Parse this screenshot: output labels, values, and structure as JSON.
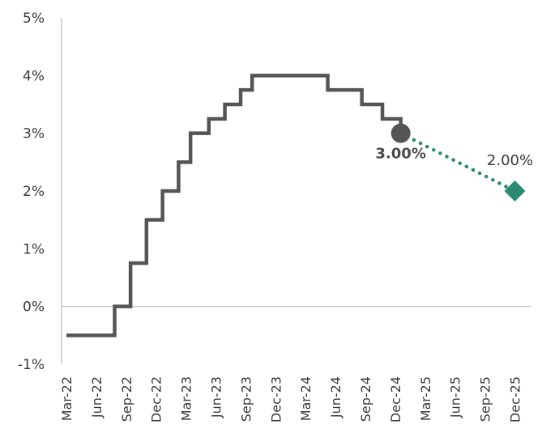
{
  "chart_data": {
    "type": "line",
    "title": "",
    "xlabel": "",
    "ylabel": "",
    "ylim": [
      -1,
      5
    ],
    "y_ticks": [
      "-1%",
      "0%",
      "1%",
      "2%",
      "3%",
      "4%",
      "5%"
    ],
    "categories": [
      "Mar-22",
      "Jun-22",
      "Sep-22",
      "Dec-22",
      "Mar-23",
      "Jun-23",
      "Sep-23",
      "Dec-23",
      "Mar-24",
      "Jun-24",
      "Sep-24",
      "Dec-24",
      "Mar-25",
      "Jun-25",
      "Sep-25",
      "Dec-25"
    ],
    "grid": false,
    "series": [
      {
        "style": "step",
        "color": "#555555",
        "points": [
          {
            "date": "2022-03-01",
            "rate": -0.5
          },
          {
            "date": "2022-07-27",
            "rate": 0.0
          },
          {
            "date": "2022-09-14",
            "rate": 0.75
          },
          {
            "date": "2022-11-02",
            "rate": 1.5
          },
          {
            "date": "2022-12-21",
            "rate": 2.0
          },
          {
            "date": "2023-02-08",
            "rate": 2.5
          },
          {
            "date": "2023-03-15",
            "rate": 3.0
          },
          {
            "date": "2023-05-10",
            "rate": 3.25
          },
          {
            "date": "2023-06-28",
            "rate": 3.5
          },
          {
            "date": "2023-08-16",
            "rate": 3.75
          },
          {
            "date": "2023-09-20",
            "rate": 4.0
          },
          {
            "date": "2024-05-08",
            "rate": 3.75
          },
          {
            "date": "2024-08-21",
            "rate": 3.5
          },
          {
            "date": "2024-10-23",
            "rate": 3.25
          },
          {
            "date": "2024-12-18",
            "rate": 3.0
          }
        ]
      },
      {
        "style": "dotted",
        "color": "#2a8a73",
        "points": [
          {
            "date": "2024-12-18",
            "rate": 3.0
          },
          {
            "date": "2025-12-01",
            "rate": 2.0
          }
        ]
      }
    ],
    "annotations": [
      {
        "text": "3.00%",
        "date": "2024-12-18",
        "rate": 3.0,
        "marker": "circle",
        "color": "#555555",
        "bold": true
      },
      {
        "text": "2.00%",
        "date": "2025-12-01",
        "rate": 2.0,
        "marker": "diamond",
        "color": "#2a8a73",
        "bold": false
      }
    ]
  }
}
